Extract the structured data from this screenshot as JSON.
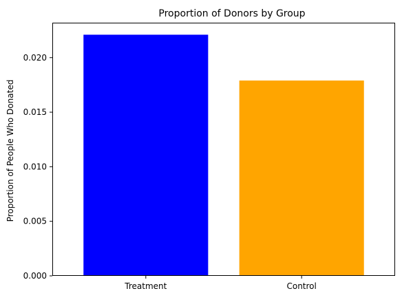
{
  "chart_data": {
    "type": "bar",
    "title": "Proportion of Donors by Group",
    "xlabel": "",
    "ylabel": "Proportion of People Who Donated",
    "categories": [
      "Treatment",
      "Control"
    ],
    "values": [
      0.0221,
      0.0179
    ],
    "colors": [
      "#0000ff",
      "#ffa500"
    ],
    "ylim": [
      0,
      0.0232
    ],
    "yticks": [
      0.0,
      0.005,
      0.01,
      0.015,
      0.02
    ],
    "ytick_labels": [
      "0.000",
      "0.005",
      "0.010",
      "0.015",
      "0.020"
    ],
    "grid": false,
    "legend": "none"
  }
}
